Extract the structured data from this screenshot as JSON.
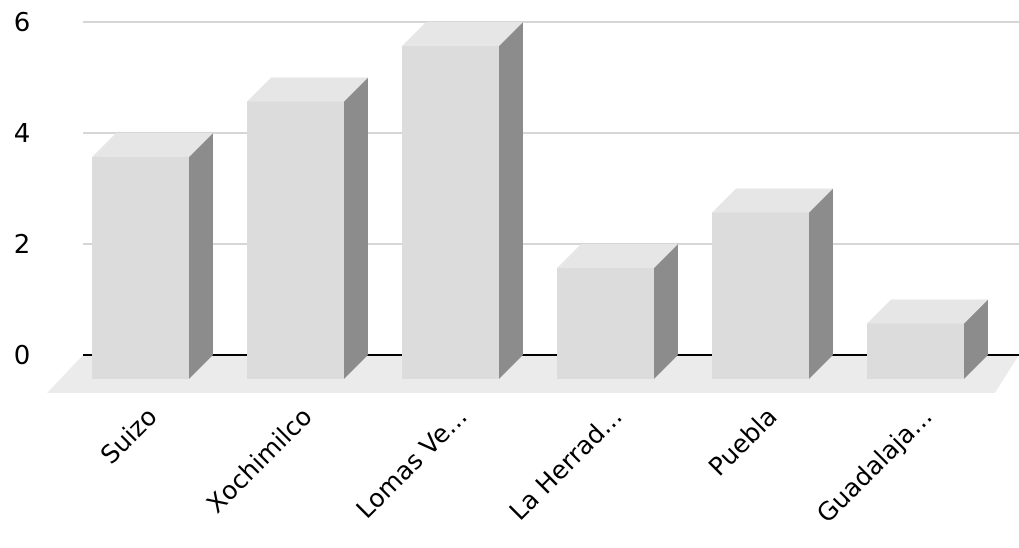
{
  "chart_data": {
    "type": "bar",
    "style": "3d-column",
    "categories": [
      "Suizo",
      "Xochimilco",
      "Lomas Ve...",
      "La Herrad...",
      "Puebla",
      "Guadalaja..."
    ],
    "values": [
      4,
      5,
      6,
      2,
      3,
      1
    ],
    "title": "",
    "xlabel": "",
    "ylabel": "",
    "ylim": [
      0,
      6
    ],
    "yticks": [
      "0",
      "2",
      "4",
      "6"
    ],
    "grid": true,
    "legend": "none",
    "colors": {
      "bar_front": "#dcdcdc",
      "bar_top": "#e6e6e6",
      "bar_side": "#8c8c8c",
      "floor": "#ebebeb",
      "gridline": "#c8c8c8",
      "axis": "#000000"
    }
  }
}
